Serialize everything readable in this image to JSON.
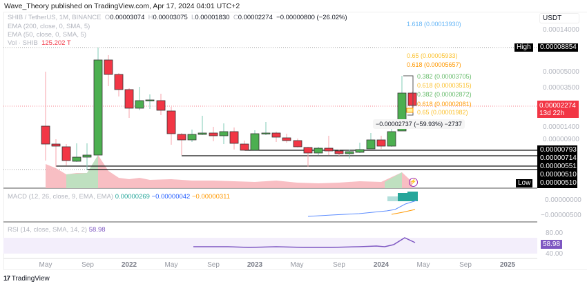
{
  "publisher_line": "Wave_Theory published on TradingView.com, Apr 17, 2024 04:01 UTC+2",
  "symbol": {
    "name": "SHIB / TetherUS, 1M, BINANCE",
    "o_label": "O",
    "open": "0.00003074",
    "h_label": "H",
    "high": "0.00003075",
    "l_label": "L",
    "low": "0.00001830",
    "c_label": "C",
    "close": "0.00002274",
    "change": "−0.00000800 (−26.02%)"
  },
  "indicators": {
    "ema200": "EMA (200, close, 0, SMA, 5)",
    "ema50": "EMA (50, close, 0, SMA, 5)",
    "vol_label": "Vol · SHIB",
    "vol_value": "125.202 T"
  },
  "currency": "USDT",
  "price_axis": [
    "0.00014000",
    "0.00005000",
    "0.00003500",
    "0.00001400",
    "0.00000900"
  ],
  "high": {
    "label": "High",
    "value": "0.00008854"
  },
  "low": {
    "label": "Low",
    "value": "0.00000510"
  },
  "current_price": {
    "value": "0.00002274",
    "countdown": "13d 22h"
  },
  "levels": [
    "0.00000793",
    "0.00000714",
    "0.00000551",
    "0.00000510"
  ],
  "fib": {
    "f1618": "1.618 (0.00013930)",
    "f065": "0.65 (0.00005933)",
    "f0618a": "0.618 (0.00005657)",
    "f0382a": "0.382 (0.00003705)",
    "f0618b": "0.618 (0.00003515)",
    "f0382b": "0.382 (0.00002872)",
    "f0618c": "0.618 (0.00002081)",
    "f065b": "0.65 (0.00001982)"
  },
  "measure": "−0.00002737 (−59.93%) −2737",
  "macd": {
    "label": "MACD (12, 26, close, 9, EMA, EMA)",
    "hist": "0.00000269",
    "macd": "−0.00000042",
    "signal": "−0.00000311",
    "axis": [
      "0.00000000",
      "−0.00000500"
    ]
  },
  "rsi": {
    "label": "RSI (14, close, SMA, 14, 2)",
    "value": "58.98",
    "axis": [
      "80.00",
      "40.00"
    ]
  },
  "time_axis": [
    "May",
    "Sep",
    "2022",
    "May",
    "Sep",
    "2023",
    "May",
    "Sep",
    "2024",
    "May",
    "Sep",
    "2025"
  ],
  "brand": "TradingView",
  "colors": {
    "up": "#4caf50",
    "down": "#f23645",
    "macd": "#2962ff",
    "signal": "#ff9800",
    "rsi": "#7e57c2"
  }
}
